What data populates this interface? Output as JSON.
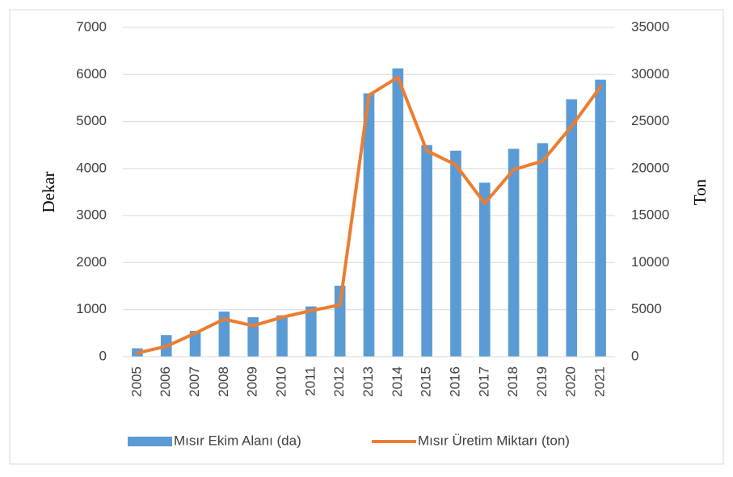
{
  "chart_data": {
    "type": "bar-line",
    "categories": [
      "2005",
      "2006",
      "2007",
      "2008",
      "2009",
      "2010",
      "2011",
      "2012",
      "2013",
      "2014",
      "2015",
      "2016",
      "2017",
      "2018",
      "2019",
      "2020",
      "2021"
    ],
    "series": [
      {
        "name": "Mısır Ekim Alanı (da)",
        "color": "#5b9bd5",
        "type": "bar",
        "axis": "y",
        "values": [
          180,
          460,
          550,
          960,
          840,
          880,
          1070,
          1510,
          5600,
          6130,
          4500,
          4380,
          3700,
          4420,
          4540,
          5470,
          5890
        ]
      },
      {
        "name": "Mısır Üretim Miktarı (ton)",
        "color": "#ed7d31",
        "type": "line",
        "axis": "y2",
        "values": [
          400,
          1100,
          2500,
          4000,
          3300,
          4200,
          4900,
          5500,
          27800,
          29700,
          21900,
          20400,
          16300,
          19900,
          20800,
          24500,
          28700
        ]
      }
    ],
    "ylabel": "Dekar",
    "y2label": "Ton",
    "ylim": [
      0,
      7000
    ],
    "yticks": [
      0,
      1000,
      2000,
      3000,
      4000,
      5000,
      6000,
      7000
    ],
    "y2lim": [
      0,
      35000
    ],
    "y2ticks": [
      0,
      5000,
      10000,
      15000,
      20000,
      25000,
      30000,
      35000
    ],
    "grid": true,
    "legend": "bottom"
  }
}
